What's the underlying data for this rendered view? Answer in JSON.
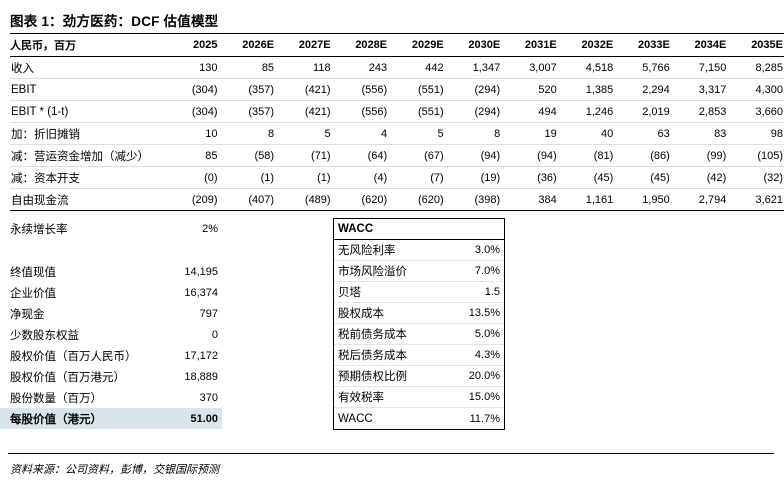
{
  "page": {
    "title": "图表 1：劲方医药：DCF 估值模型",
    "footer": "资料来源：公司资料，彭博，交银国际预测"
  },
  "colors": {
    "highlight_bg": "#d7e6ea"
  },
  "dcf_table": {
    "unit_label": "人民币，百万",
    "years": [
      "2025",
      "2026E",
      "2027E",
      "2028E",
      "2029E",
      "2030E",
      "2031E",
      "2032E",
      "2033E",
      "2034E",
      "2035E"
    ],
    "rows": [
      {
        "label": "收入",
        "values": [
          "130",
          "85",
          "118",
          "243",
          "442",
          "1,347",
          "3,007",
          "4,518",
          "5,766",
          "7,150",
          "8,285"
        ]
      },
      {
        "label": "EBIT",
        "values": [
          "(304)",
          "(357)",
          "(421)",
          "(556)",
          "(551)",
          "(294)",
          "520",
          "1,385",
          "2,294",
          "3,317",
          "4,300"
        ]
      },
      {
        "label": "EBIT * (1-t)",
        "values": [
          "(304)",
          "(357)",
          "(421)",
          "(556)",
          "(551)",
          "(294)",
          "494",
          "1,246",
          "2,019",
          "2,853",
          "3,660"
        ]
      },
      {
        "label": "加：折旧摊销",
        "values": [
          "10",
          "8",
          "5",
          "4",
          "5",
          "8",
          "19",
          "40",
          "63",
          "83",
          "98"
        ]
      },
      {
        "label": "减：营运资金增加（减少）",
        "values": [
          "85",
          "(58)",
          "(71)",
          "(64)",
          "(67)",
          "(94)",
          "(94)",
          "(81)",
          "(86)",
          "(99)",
          "(105)"
        ]
      },
      {
        "label": "减：资本开支",
        "values": [
          "(0)",
          "(1)",
          "(1)",
          "(4)",
          "(7)",
          "(19)",
          "(36)",
          "(45)",
          "(45)",
          "(42)",
          "(32)"
        ]
      },
      {
        "label": "自由现金流",
        "values": [
          "(209)",
          "(407)",
          "(489)",
          "(620)",
          "(620)",
          "(398)",
          "384",
          "1,161",
          "1,950",
          "2,794",
          "3,621"
        ]
      }
    ]
  },
  "valuation": {
    "rows": [
      {
        "label": "永续增长率",
        "value": "2%",
        "highlight": false,
        "spacer_after": true
      },
      {
        "label": "终值现值",
        "value": "14,195",
        "highlight": false,
        "spacer_after": false
      },
      {
        "label": "企业价值",
        "value": "16,374",
        "highlight": false,
        "spacer_after": false
      },
      {
        "label": "净现金",
        "value": "797",
        "highlight": false,
        "spacer_after": false
      },
      {
        "label": "少数股东权益",
        "value": "0",
        "highlight": false,
        "spacer_after": false
      },
      {
        "label": "股权价值（百万人民币）",
        "value": "17,172",
        "highlight": false,
        "spacer_after": false
      },
      {
        "label": "股权价值（百万港元）",
        "value": "18,889",
        "highlight": false,
        "spacer_after": false
      },
      {
        "label": "股份数量（百万）",
        "value": "370",
        "highlight": false,
        "spacer_after": false
      },
      {
        "label": "每股价值（港元）",
        "value": "51.00",
        "highlight": true,
        "spacer_after": false
      }
    ]
  },
  "wacc": {
    "header": "WACC",
    "rows": [
      {
        "label": "无风险利率",
        "value": "3.0%"
      },
      {
        "label": "市场风险溢价",
        "value": "7.0%"
      },
      {
        "label": "贝塔",
        "value": "1.5"
      },
      {
        "label": "股权成本",
        "value": "13.5%"
      },
      {
        "label": "税前债务成本",
        "value": "5.0%"
      },
      {
        "label": "税后债务成本",
        "value": "4.3%"
      },
      {
        "label": "预期债权比例",
        "value": "20.0%"
      },
      {
        "label": "有效税率",
        "value": "15.0%"
      },
      {
        "label": "WACC",
        "value": "11.7%"
      }
    ]
  }
}
